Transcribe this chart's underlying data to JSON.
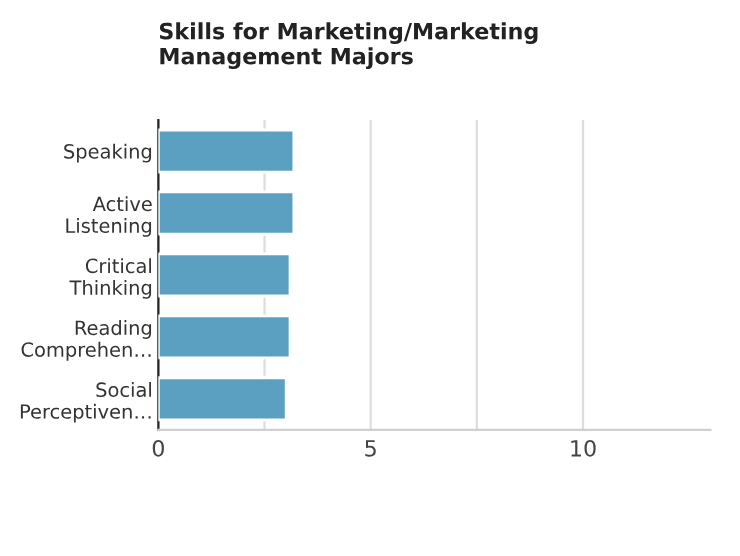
{
  "chart_data": {
    "type": "bar",
    "orientation": "horizontal",
    "title": "Skills for Marketing/Marketing\nManagement Majors",
    "categories": [
      "Speaking",
      "Active\nListening",
      "Critical\nThinking",
      "Reading\nComprehen…",
      "Social\nPerceptiven…"
    ],
    "values": [
      3.19,
      3.19,
      3.1,
      3.1,
      3.01
    ],
    "color": "#5ba0c0",
    "xlim": [
      0,
      13
    ],
    "xticks": [
      0,
      {
        "value": 2.5,
        "label": null
      },
      5,
      {
        "value": 7.5,
        "label": null
      },
      10
    ],
    "grid": "x"
  }
}
